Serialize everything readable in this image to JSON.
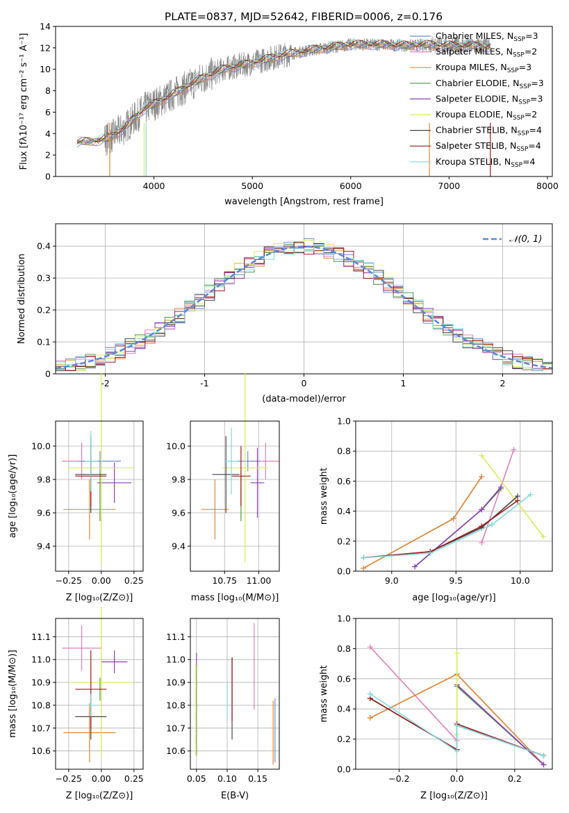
{
  "colors": {
    "chabrier_miles": "#6b8fd6",
    "salpeter_miles": "#e07fb8",
    "kroupa_miles": "#e8872e",
    "chabrier_elodie": "#4a9a4a",
    "salpeter_elodie": "#8f3cb8",
    "kroupa_elodie": "#d9ea55",
    "chabrier_stelib": "#444444",
    "salpeter_stelib": "#a01818",
    "kroupa_stelib": "#7fd8df",
    "data_spectrum": "#888888",
    "normal_curve": "#5b87dd",
    "grid": "#b0b0b0"
  },
  "chart_data": [
    {
      "id": "spectrum",
      "type": "line",
      "title": "PLATE=0837, MJD=52642, FIBERID=0006, z=0.176",
      "xlabel": "wavelength [Angstrom, rest frame]",
      "ylabel": "Flux [fλ10⁻¹⁷ erg cm⁻² s⁻¹ A⁻¹]",
      "xlim": [
        3000,
        8050
      ],
      "ylim": [
        0,
        14
      ],
      "xticks": [
        4000,
        5000,
        6000,
        7000,
        8000
      ],
      "yticks": [
        0,
        2,
        4,
        6,
        8,
        10,
        12,
        14
      ],
      "grid": false,
      "legend_position": "right",
      "legend": [
        {
          "label": "Chabrier MILES, N",
          "sub": "SSP",
          "tail": "=3",
          "color_key": "chabrier_miles"
        },
        {
          "label": "Salpeter MILES, N",
          "sub": "SSP",
          "tail": "=2",
          "color_key": "salpeter_miles"
        },
        {
          "label": "Kroupa MILES, N",
          "sub": "SSP",
          "tail": "=3",
          "color_key": "kroupa_miles"
        },
        {
          "label": "Chabrier ELODIE, N",
          "sub": "SSP",
          "tail": "=3",
          "color_key": "chabrier_elodie"
        },
        {
          "label": "Salpeter ELODIE, N",
          "sub": "SSP",
          "tail": "=3",
          "color_key": "salpeter_elodie"
        },
        {
          "label": "Kroupa ELODIE, N",
          "sub": "SSP",
          "tail": "=2",
          "color_key": "kroupa_elodie"
        },
        {
          "label": "Chabrier STELIB, N",
          "sub": "SSP",
          "tail": "=4",
          "color_key": "chabrier_stelib"
        },
        {
          "label": "Salpeter STELIB, N",
          "sub": "SSP",
          "tail": "=4",
          "color_key": "salpeter_stelib"
        },
        {
          "label": "Kroupa STELIB, N",
          "sub": "SSP",
          "tail": "=4",
          "color_key": "kroupa_stelib"
        }
      ],
      "continuum": {
        "x": [
          3200,
          3400,
          3550,
          3700,
          3900,
          4100,
          4300,
          4500,
          4700,
          5000,
          5300,
          5600,
          6000,
          6300,
          6600,
          6800,
          7000,
          7200,
          7400
        ],
        "y": [
          3.2,
          3.3,
          3.6,
          4.5,
          6.3,
          7.2,
          8.2,
          9.2,
          10.0,
          10.6,
          11.3,
          11.8,
          12.3,
          12.3,
          12.2,
          12.3,
          12.2,
          12.2,
          12.1
        ]
      }
    },
    {
      "id": "residuals",
      "type": "step",
      "xlabel": "(data-model)/error",
      "ylabel": "Normed distribution",
      "xlim": [
        -2.5,
        2.5
      ],
      "ylim": [
        0,
        0.47
      ],
      "xticks": [
        -2,
        -1,
        0,
        1,
        2
      ],
      "yticks": [
        0.0,
        0.1,
        0.2,
        0.3,
        0.4
      ],
      "grid": true,
      "legend_position": "top-right",
      "curve_label": "𝒩(0, 1)",
      "bin_edges_start": -2.5,
      "bin_width": 0.1
    },
    {
      "id": "age_vs_Z",
      "type": "errorbar",
      "xlabel": "Z [log₁₀(Z/Z⊙)]",
      "ylabel": "age  [log₁₀(age/yr)]",
      "xlim": [
        -0.35,
        0.32
      ],
      "ylim": [
        9.25,
        10.15
      ],
      "xticks": [
        -0.25,
        0.0,
        0.25
      ],
      "xticklabels": [
        "−0.25",
        "0.00",
        "0.25"
      ],
      "yticks": [
        9.4,
        9.6,
        9.8,
        10.0
      ],
      "yticklabels": [
        "9.4",
        "9.6",
        "9.8",
        "10.0"
      ],
      "grid": true,
      "points": [
        {
          "color_key": "salpeter_miles",
          "x": -0.15,
          "xerr": 0.15,
          "y": 9.91,
          "yerr": 0.11
        },
        {
          "color_key": "chabrier_miles",
          "x": -0.01,
          "xerr": 0.16,
          "y": 9.91,
          "yerr": 0.06
        },
        {
          "color_key": "kroupa_miles",
          "x": -0.09,
          "xerr": 0.2,
          "y": 9.62,
          "yerr": 0.18
        },
        {
          "color_key": "chabrier_elodie",
          "x": -0.01,
          "xerr": 0.0,
          "y": 9.7,
          "yerr": 0.15
        },
        {
          "color_key": "salpeter_elodie",
          "x": 0.1,
          "xerr": 0.13,
          "y": 9.78,
          "yerr": 0.12
        },
        {
          "color_key": "kroupa_elodie",
          "x": 0.0,
          "xerr": 0.25,
          "y": 9.87,
          "yerr": 0.57
        },
        {
          "color_key": "chabrier_stelib",
          "x": -0.08,
          "xerr": 0.12,
          "y": 9.83,
          "yerr": 0.23
        },
        {
          "color_key": "salpeter_stelib",
          "x": -0.08,
          "xerr": 0.12,
          "y": 9.82,
          "yerr": 0.18
        },
        {
          "color_key": "kroupa_stelib",
          "x": -0.08,
          "xerr": 0.05,
          "y": 9.91,
          "yerr": 0.18
        }
      ]
    },
    {
      "id": "age_vs_mass",
      "type": "errorbar",
      "xlabel": "mass [log₁₀(M/M⊙)]",
      "ylabel": "",
      "xlim": [
        10.5,
        11.15
      ],
      "ylim": [
        9.25,
        10.15
      ],
      "xticks": [
        10.75,
        11.0
      ],
      "xticklabels": [
        "10.75",
        "11.00"
      ],
      "yticks": [
        9.4,
        9.6,
        9.8,
        10.0
      ],
      "yticklabels": [
        "9.4",
        "9.6",
        "9.8",
        "10.0"
      ],
      "grid": true,
      "points": [
        {
          "color_key": "salpeter_miles",
          "x": 11.05,
          "xerr": 0.1,
          "y": 9.91,
          "yerr": 0.11
        },
        {
          "color_key": "chabrier_miles",
          "x": 10.92,
          "xerr": 0.09,
          "y": 9.91,
          "yerr": 0.06
        },
        {
          "color_key": "kroupa_miles",
          "x": 10.68,
          "xerr": 0.1,
          "y": 9.62,
          "yerr": 0.18
        },
        {
          "color_key": "chabrier_elodie",
          "x": 10.87,
          "xerr": 0.0,
          "y": 9.7,
          "yerr": 0.15
        },
        {
          "color_key": "salpeter_elodie",
          "x": 10.99,
          "xerr": 0.05,
          "y": 9.78,
          "yerr": 0.21
        },
        {
          "color_key": "kroupa_elodie",
          "x": 10.9,
          "xerr": 0.17,
          "y": 9.87,
          "yerr": 0.57
        },
        {
          "color_key": "chabrier_stelib",
          "x": 10.76,
          "xerr": 0.1,
          "y": 9.83,
          "yerr": 0.23
        },
        {
          "color_key": "salpeter_stelib",
          "x": 10.87,
          "xerr": 0.07,
          "y": 9.82,
          "yerr": 0.18
        },
        {
          "color_key": "kroupa_stelib",
          "x": 10.8,
          "xerr": 0.05,
          "y": 9.91,
          "yerr": 0.2
        }
      ]
    },
    {
      "id": "massweight_vs_age",
      "type": "line",
      "xlabel": "age  [log₁₀(age/yr)]",
      "ylabel": "mass weight",
      "xlim": [
        8.72,
        10.25
      ],
      "ylim": [
        0,
        1.0
      ],
      "xticks": [
        9.0,
        9.5,
        10.0
      ],
      "xticklabels": [
        "9.0",
        "9.5",
        "10.0"
      ],
      "yticks": [
        0.0,
        0.2,
        0.4,
        0.6,
        0.8,
        1.0
      ],
      "yticklabels": [
        "0.0",
        "0.2",
        "0.4",
        "0.6",
        "0.8",
        "1.0"
      ],
      "grid": true,
      "series": [
        {
          "color_key": "chabrier_miles",
          "x": [
            8.78,
            9.48,
            9.7
          ],
          "y": [
            0.02,
            0.35,
            0.63
          ]
        },
        {
          "color_key": "salpeter_miles",
          "x": [
            9.7,
            9.95
          ],
          "y": [
            0.19,
            0.81
          ]
        },
        {
          "color_key": "kroupa_miles",
          "x": [
            8.78,
            9.48,
            9.7
          ],
          "y": [
            0.02,
            0.35,
            0.63
          ]
        },
        {
          "color_key": "chabrier_elodie",
          "x": [
            9.18,
            9.7,
            9.85
          ],
          "y": [
            0.03,
            0.41,
            0.55
          ]
        },
        {
          "color_key": "salpeter_elodie",
          "x": [
            9.18,
            9.7,
            9.85
          ],
          "y": [
            0.03,
            0.41,
            0.56
          ]
        },
        {
          "color_key": "kroupa_elodie",
          "x": [
            9.7,
            10.18
          ],
          "y": [
            0.77,
            0.23
          ]
        },
        {
          "color_key": "chabrier_stelib",
          "x": [
            8.78,
            9.3,
            9.7,
            9.98
          ],
          "y": [
            0.09,
            0.13,
            0.29,
            0.5
          ]
        },
        {
          "color_key": "salpeter_stelib",
          "x": [
            8.78,
            9.3,
            9.7,
            9.98
          ],
          "y": [
            0.09,
            0.13,
            0.3,
            0.47
          ]
        },
        {
          "color_key": "kroupa_stelib",
          "x": [
            8.78,
            9.3,
            9.78,
            10.08
          ],
          "y": [
            0.09,
            0.12,
            0.31,
            0.51
          ]
        }
      ]
    },
    {
      "id": "mass_vs_Z",
      "type": "errorbar",
      "xlabel": "Z [log₁₀(Z/Z⊙)]",
      "ylabel": "mass [log₁₀(M/M⊙)]",
      "xlim": [
        -0.35,
        0.32
      ],
      "ylim": [
        10.52,
        11.18
      ],
      "xticks": [
        -0.25,
        0.0,
        0.25
      ],
      "xticklabels": [
        "−0.25",
        "0.00",
        "0.25"
      ],
      "yticks": [
        10.6,
        10.7,
        10.8,
        10.9,
        11.0,
        11.1
      ],
      "yticklabels": [
        "10.6",
        "10.7",
        "10.8",
        "10.9",
        "11.0",
        "11.1"
      ],
      "grid": true,
      "points": [
        {
          "color_key": "salpeter_miles",
          "x": -0.15,
          "xerr": 0.15,
          "y": 11.05,
          "yerr": 0.1
        },
        {
          "color_key": "chabrier_miles",
          "x": -0.09,
          "xerr": 0.0,
          "y": 10.69,
          "yerr": 0.09
        },
        {
          "color_key": "kroupa_miles",
          "x": -0.09,
          "xerr": 0.2,
          "y": 10.68,
          "yerr": 0.13
        },
        {
          "color_key": "chabrier_elodie",
          "x": -0.01,
          "xerr": 0.0,
          "y": 10.87,
          "yerr": 0.05
        },
        {
          "color_key": "salpeter_elodie",
          "x": 0.1,
          "xerr": 0.1,
          "y": 10.99,
          "yerr": 0.05
        },
        {
          "color_key": "kroupa_elodie",
          "x": 0.0,
          "xerr": 0.25,
          "y": 10.9,
          "yerr": 0.33
        },
        {
          "color_key": "chabrier_stelib",
          "x": -0.08,
          "xerr": 0.12,
          "y": 10.75,
          "yerr": 0.1
        },
        {
          "color_key": "salpeter_stelib",
          "x": -0.08,
          "xerr": 0.12,
          "y": 10.87,
          "yerr": 0.17
        },
        {
          "color_key": "kroupa_stelib",
          "x": -0.08,
          "xerr": 0.05,
          "y": 10.8,
          "yerr": 0.05
        }
      ]
    },
    {
      "id": "mass_vs_ebv",
      "type": "errorbar",
      "xlabel": "E(B-V)",
      "ylabel": "",
      "xlim": [
        0.04,
        0.185
      ],
      "ylim": [
        10.52,
        11.18
      ],
      "xticks": [
        0.05,
        0.1,
        0.15
      ],
      "xticklabels": [
        "0.05",
        "0.10",
        "0.15"
      ],
      "yticks": [
        10.6,
        10.7,
        10.8,
        10.9,
        11.0,
        11.1
      ],
      "yticklabels": [
        "10.6",
        "10.7",
        "10.8",
        "10.9",
        "11.0",
        "11.1"
      ],
      "grid": true,
      "points": [
        {
          "color_key": "salpeter_miles",
          "x": 0.144,
          "xerr": 0.0,
          "y": 10.97,
          "yerr": 0.19
        },
        {
          "color_key": "chabrier_miles",
          "x": 0.178,
          "xerr": 0.0,
          "y": 10.69,
          "yerr": 0.14
        },
        {
          "color_key": "kroupa_miles",
          "x": 0.175,
          "xerr": 0.0,
          "y": 10.68,
          "yerr": 0.14
        },
        {
          "color_key": "chabrier_elodie",
          "x": 0.05,
          "xerr": 0.0,
          "y": 10.78,
          "yerr": 0.2
        },
        {
          "color_key": "salpeter_elodie",
          "x": 0.05,
          "xerr": 0.0,
          "y": 11.0,
          "yerr": 0.03
        },
        {
          "color_key": "kroupa_elodie",
          "x": 0.049,
          "xerr": 0.0,
          "y": 10.78,
          "yerr": 0.2
        },
        {
          "color_key": "chabrier_stelib",
          "x": 0.108,
          "xerr": 0.0,
          "y": 10.83,
          "yerr": 0.18
        },
        {
          "color_key": "salpeter_stelib",
          "x": 0.108,
          "xerr": 0.0,
          "y": 10.87,
          "yerr": 0.14
        },
        {
          "color_key": "kroupa_stelib",
          "x": 0.1,
          "xerr": 0.0,
          "y": 10.82,
          "yerr": 0.08
        }
      ]
    },
    {
      "id": "massweight_vs_Z",
      "type": "line",
      "xlabel": "Z [log₁₀(Z/Z⊙)]",
      "ylabel": "mass weight",
      "xlim": [
        -0.35,
        0.33
      ],
      "ylim": [
        0,
        1.0
      ],
      "xticks": [
        -0.2,
        0.0,
        0.2
      ],
      "xticklabels": [
        "−0.2",
        "0.0",
        "0.2"
      ],
      "yticks": [
        0.0,
        0.2,
        0.4,
        0.6,
        0.8,
        1.0
      ],
      "yticklabels": [
        "0.0",
        "0.2",
        "0.4",
        "0.6",
        "0.8",
        "1.0"
      ],
      "grid": true,
      "series": [
        {
          "color_key": "chabrier_miles",
          "x": [
            -0.3,
            0.0,
            0.3
          ],
          "y": [
            0.34,
            0.63,
            0.03
          ]
        },
        {
          "color_key": "salpeter_miles",
          "x": [
            -0.3,
            0.0
          ],
          "y": [
            0.81,
            0.19
          ]
        },
        {
          "color_key": "kroupa_miles",
          "x": [
            -0.3,
            0.0,
            0.3
          ],
          "y": [
            0.34,
            0.63,
            0.03
          ]
        },
        {
          "color_key": "chabrier_elodie",
          "x": [
            0.0,
            0.3
          ],
          "y": [
            0.55,
            0.03
          ]
        },
        {
          "color_key": "salpeter_elodie",
          "x": [
            0.0,
            0.3
          ],
          "y": [
            0.56,
            0.03
          ]
        },
        {
          "color_key": "kroupa_elodie",
          "x": [
            0.0,
            0.0
          ],
          "y": [
            0.77,
            0.23
          ]
        },
        {
          "color_key": "chabrier_stelib",
          "x": [
            -0.3,
            0.0,
            0.0,
            0.3
          ],
          "y": [
            0.47,
            0.13,
            0.29,
            0.09
          ]
        },
        {
          "color_key": "salpeter_stelib",
          "x": [
            -0.3,
            0.0,
            0.0,
            0.3
          ],
          "y": [
            0.47,
            0.13,
            0.3,
            0.09
          ]
        },
        {
          "color_key": "kroupa_stelib",
          "x": [
            -0.3,
            0.0,
            0.0,
            0.3
          ],
          "y": [
            0.5,
            0.12,
            0.29,
            0.09
          ]
        }
      ]
    }
  ]
}
